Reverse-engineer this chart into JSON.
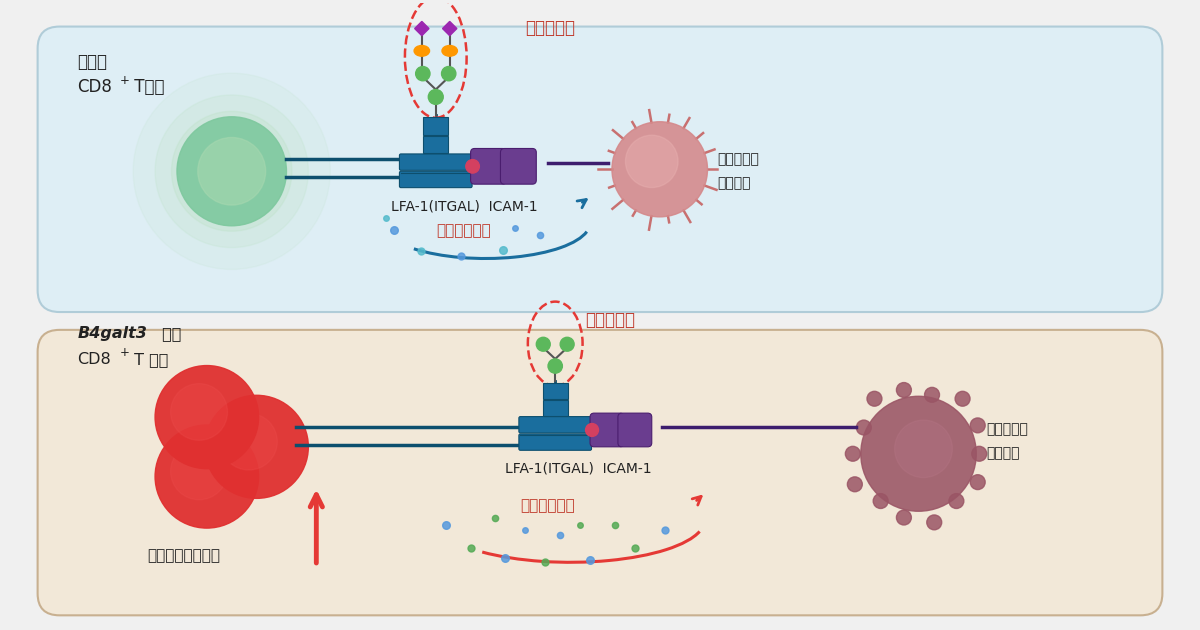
{
  "bg_color": "#f0f0f0",
  "panel1_bg": "#deeef5",
  "panel2_bg": "#f2e8d8",
  "panel1_border": "#b0ccd8",
  "panel2_border": "#c8b090",
  "glycan_complete_title": "完整の糖鎖",
  "glycan_defect_title": "欠損の糖鎖",
  "lfa_label": "LFA-1(ITGAL)  ICAM-1",
  "cytokine_label": "サイトカイン",
  "tumor_label1": "高免疫原性",
  "tumor_label2": "腫瑛細胞",
  "kill_label": "腫瑛への殺傷効果",
  "panel1_cell_color": "#7ec89e",
  "panel1_cell_inner": "#a8d8b0",
  "panel1_cell_glow": "#b8e0c0",
  "panel2_cell_color": "#e03030",
  "panel2_cell_dark": "#c02020",
  "panel2_cell_light": "#f05050",
  "tumor1_color": "#d4888a",
  "tumor1_inner": "#e8b0b0",
  "tumor1_spike": "#c87070",
  "tumor2_color": "#9a5565",
  "tumor2_bump": "#8a4555",
  "lfa_color": "#1a6e9e",
  "lfa_dark": "#0d4f6e",
  "icam_color": "#6a3d8f",
  "icam_dark": "#4a1d6e",
  "glycan_green": "#5cb85c",
  "glycan_orange": "#ff9800",
  "glycan_purple": "#9c27b0",
  "glycan_line": "#555555",
  "dashed_color": "#e53935",
  "cytokine_arc1_color": "#1a6e9e",
  "cytokine_arc2_color": "#e53935",
  "dot_blue": "#5599dd",
  "dot_cyan": "#55bbcc",
  "dot_green": "#55aa55",
  "kill_arrow_color": "#e53935",
  "connector_color": "#3d1d6e",
  "pink_dot": "#d44060",
  "text_dark": "#222222",
  "text_red": "#c0392b",
  "wildtype_label1": "野生型",
  "wildtype_label2": "CD8",
  "wildtype_label3": " T細胞",
  "b4galt3_label1": "B4galt3",
  "b4galt3_label2": " 欠損",
  "b4galt3_label3": "CD8",
  "b4galt3_label4": " T 細胞"
}
